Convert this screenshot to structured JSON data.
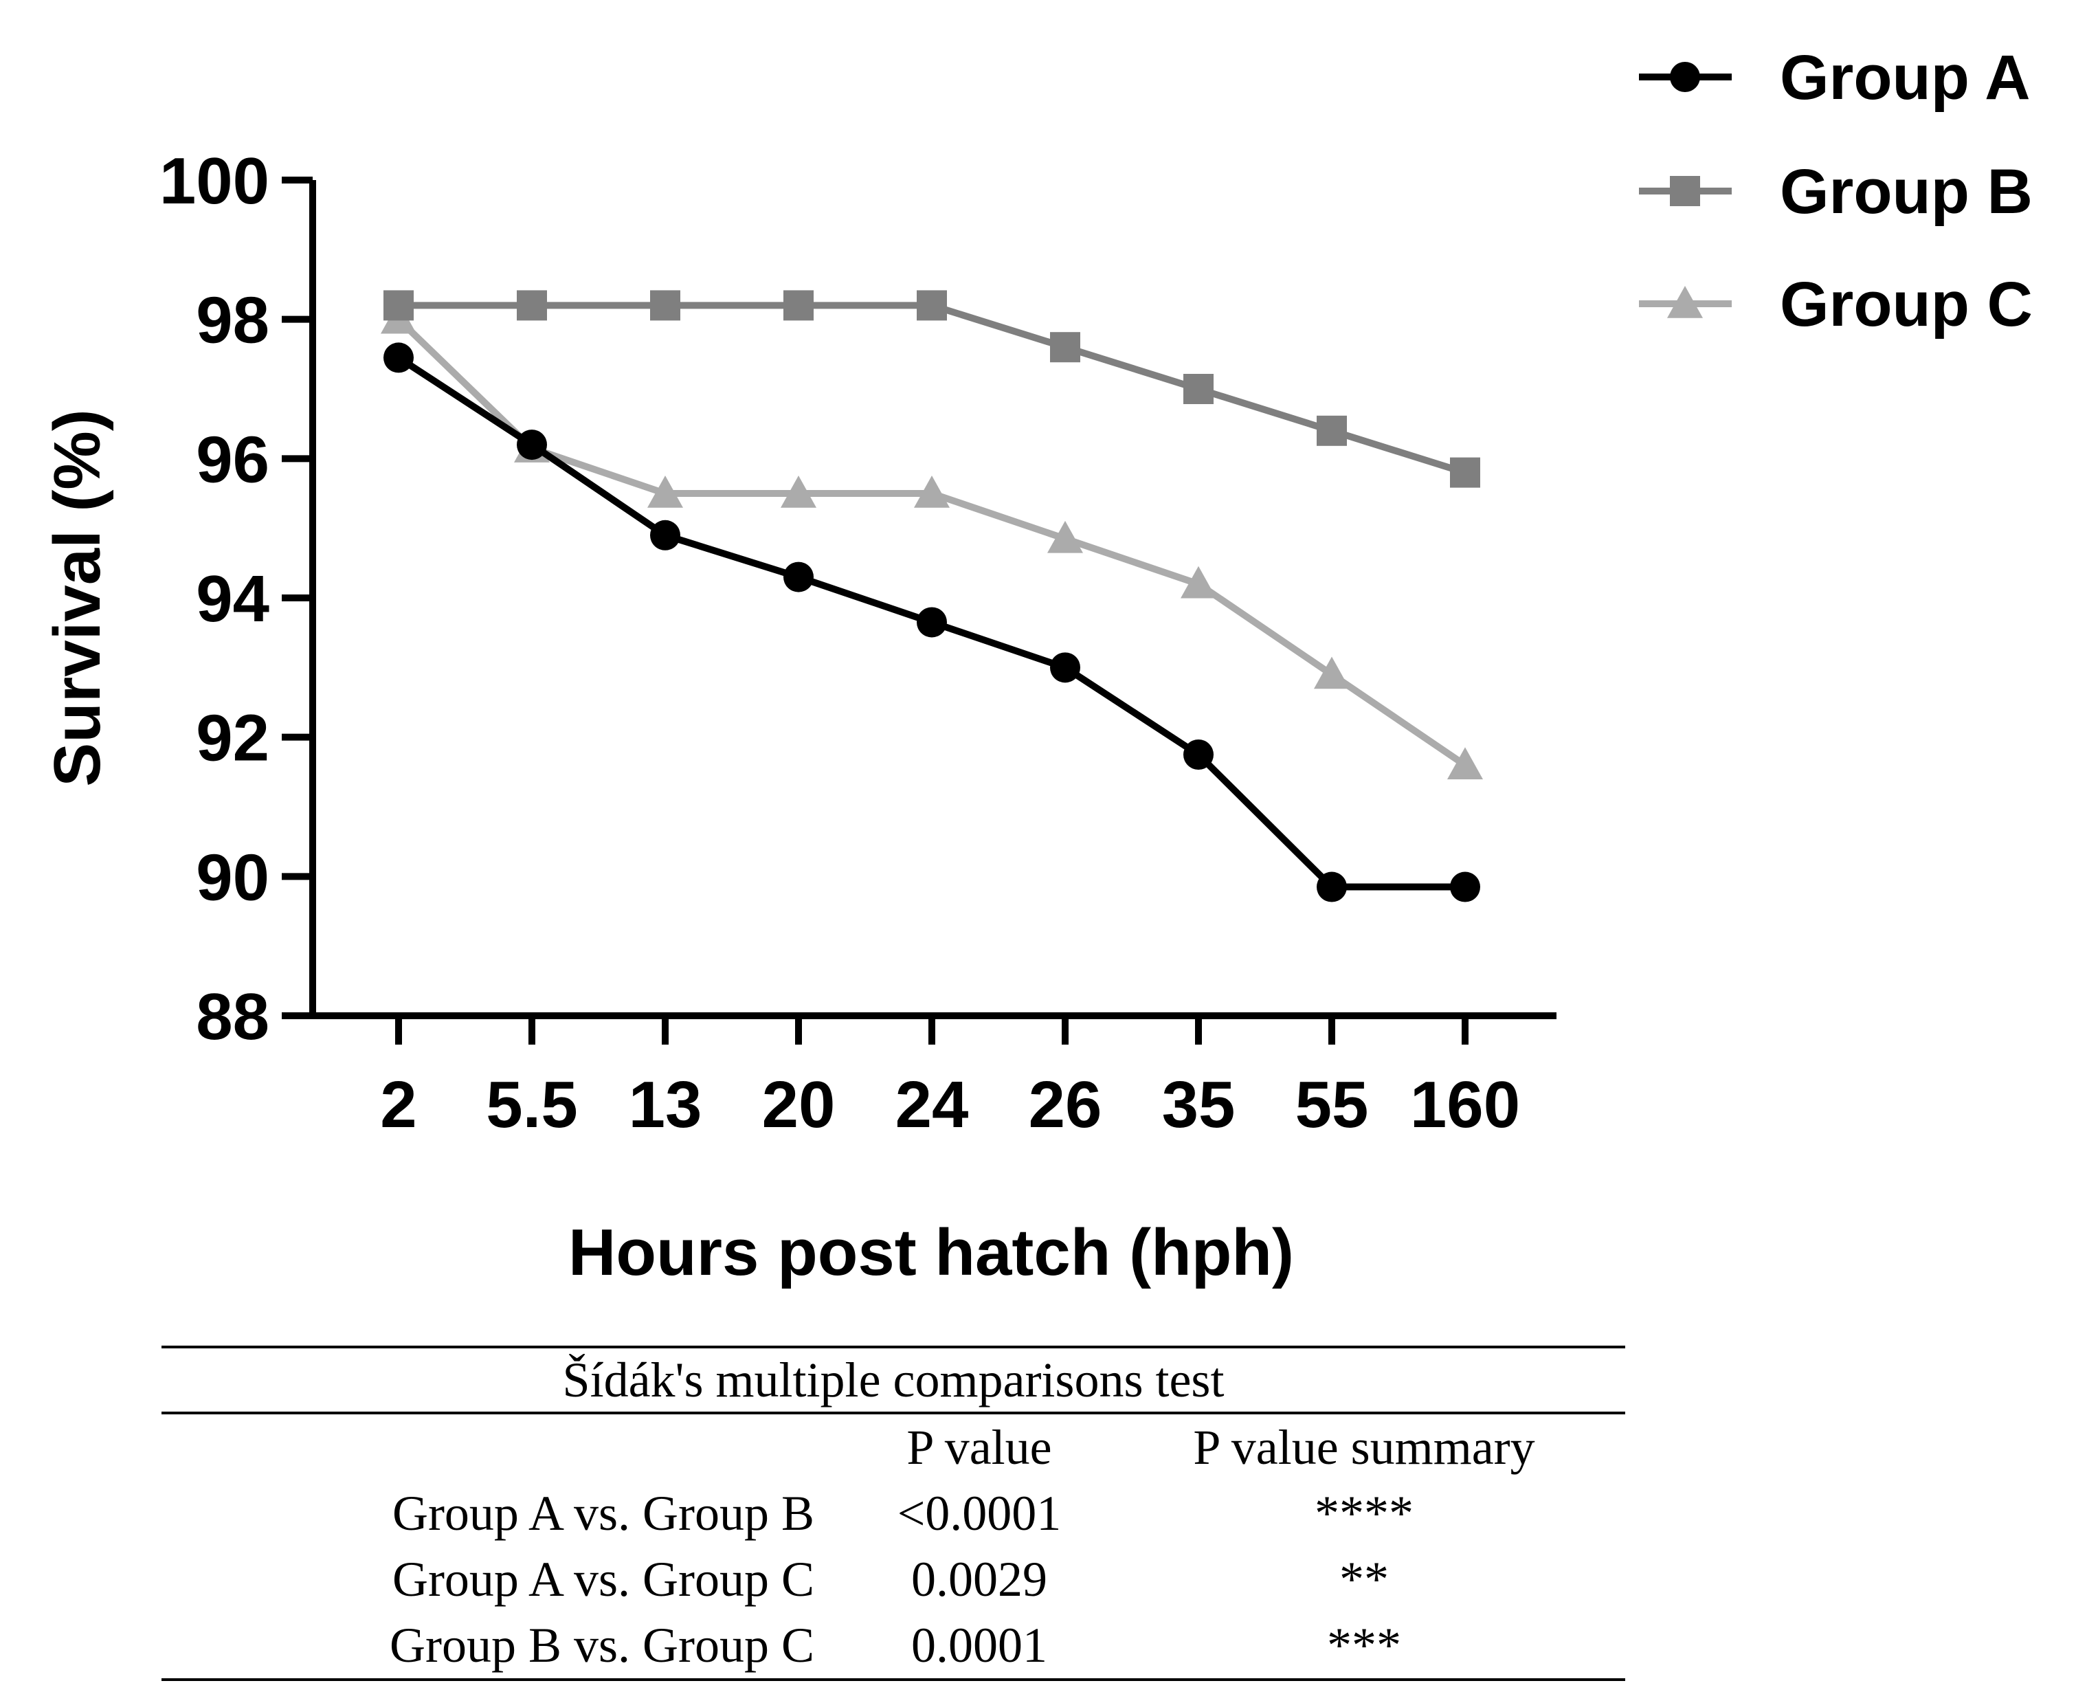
{
  "chart_data": {
    "type": "line",
    "title": "",
    "xlabel": "Hours post hatch (hph)",
    "ylabel": "Survival (%)",
    "categories": [
      "2",
      "5.5",
      "13",
      "20",
      "24",
      "26",
      "35",
      "55",
      "160"
    ],
    "ylim": [
      88,
      100
    ],
    "yticks": [
      88,
      90,
      92,
      94,
      96,
      98,
      100
    ],
    "legend_position": "top-right",
    "series": [
      {
        "name": "Group A",
        "marker": "circle",
        "color": "#000000",
        "values": [
          97.45,
          96.2,
          94.9,
          94.3,
          93.65,
          93.0,
          91.75,
          89.85,
          89.85
        ]
      },
      {
        "name": "Group B",
        "marker": "square",
        "color": "#7f7f7f",
        "values": [
          98.2,
          98.2,
          98.2,
          98.2,
          98.2,
          97.6,
          97.0,
          96.4,
          95.8
        ]
      },
      {
        "name": "Group C",
        "marker": "triangle",
        "color": "#ababab",
        "values": [
          98.0,
          96.15,
          95.5,
          95.5,
          95.5,
          94.85,
          94.2,
          92.9,
          91.6
        ]
      }
    ]
  },
  "stats_table": {
    "title": "Šídák's multiple comparisons test",
    "headers": [
      "",
      "P value",
      "P value summary"
    ],
    "rows": [
      [
        "Group A vs. Group B",
        "<0.0001",
        "****"
      ],
      [
        "Group A vs. Group C",
        "0.0029",
        "**"
      ],
      [
        "Group B vs. Group C",
        "0.0001",
        "***"
      ]
    ]
  }
}
